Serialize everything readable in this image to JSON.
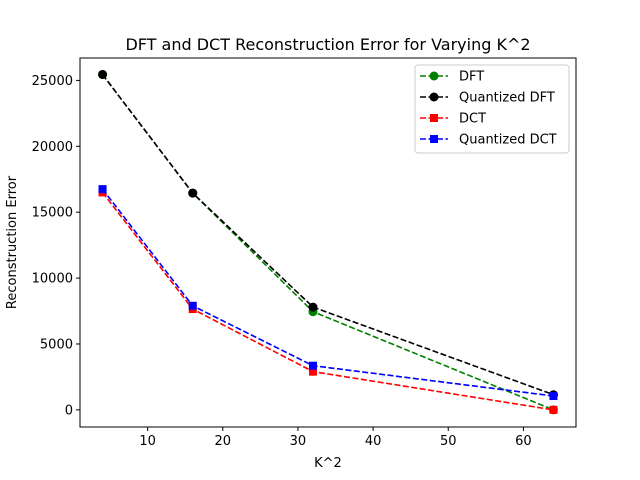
{
  "chart_data": {
    "type": "line",
    "title": "DFT and DCT Reconstruction Error for Varying K^2",
    "xlabel": "K^2",
    "ylabel": "Reconstruction Error",
    "xlim": [
      1,
      67
    ],
    "ylim": [
      -1300,
      26700
    ],
    "xticks": [
      10,
      20,
      30,
      40,
      50,
      60
    ],
    "yticks": [
      0,
      5000,
      10000,
      15000,
      20000,
      25000
    ],
    "grid": false,
    "legend_position": "top-right",
    "series": [
      {
        "name": "DFT",
        "color": "#008000",
        "marker": "circle",
        "linestyle": "dashed",
        "x": [
          4,
          16,
          32,
          64
        ],
        "y": [
          25450,
          16450,
          7450,
          0
        ]
      },
      {
        "name": "Quantized DFT",
        "color": "#000000",
        "marker": "circle",
        "linestyle": "dashed",
        "x": [
          4,
          16,
          32,
          64
        ],
        "y": [
          25450,
          16450,
          7800,
          1150
        ]
      },
      {
        "name": "DCT",
        "color": "#ff0000",
        "marker": "square",
        "linestyle": "dashed",
        "x": [
          4,
          16,
          32,
          64
        ],
        "y": [
          16500,
          7650,
          2900,
          0
        ]
      },
      {
        "name": "Quantized DCT",
        "color": "#0000ff",
        "marker": "square",
        "linestyle": "dashed",
        "x": [
          4,
          16,
          32,
          64
        ],
        "y": [
          16750,
          7900,
          3350,
          1050
        ]
      }
    ]
  }
}
